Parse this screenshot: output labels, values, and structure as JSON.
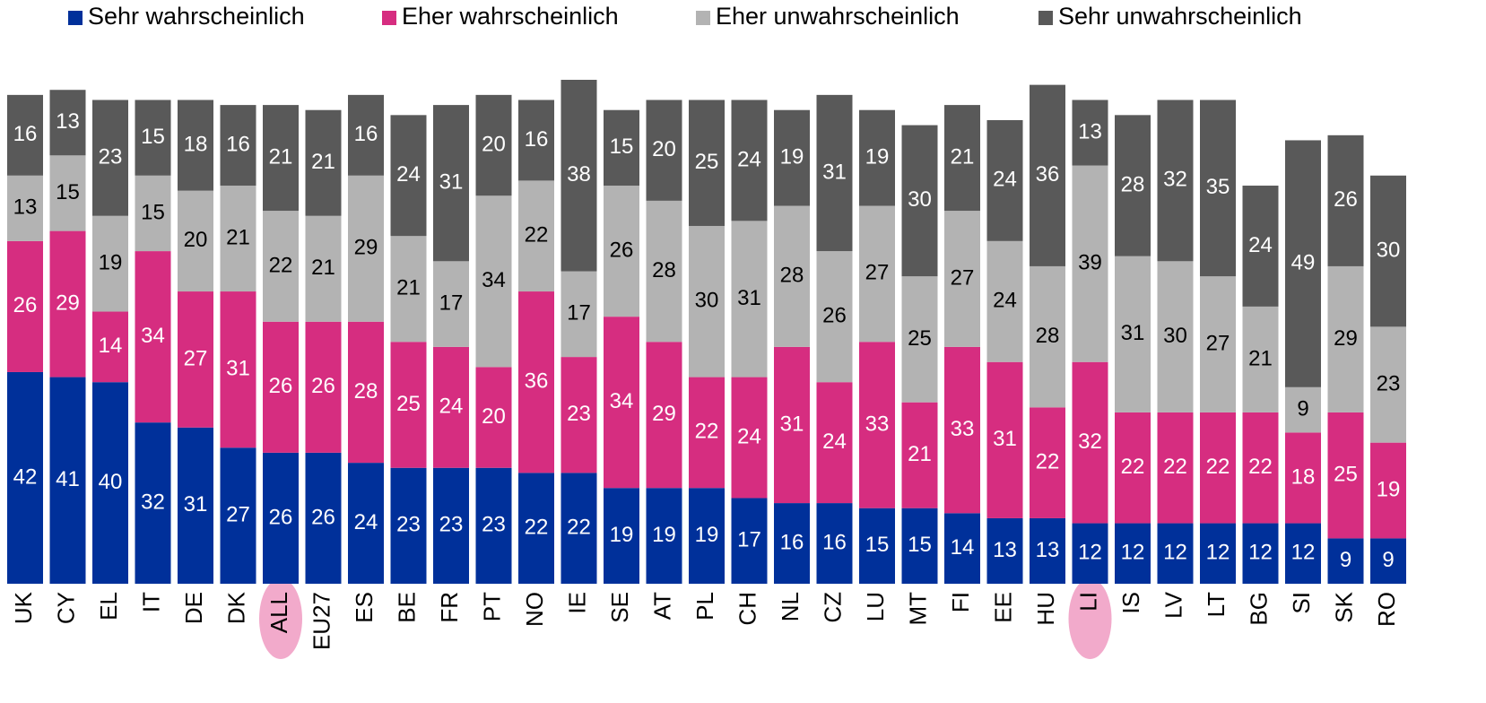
{
  "chart_data": {
    "type": "stacked_bar",
    "categories": [
      "UK",
      "CY",
      "EL",
      "IT",
      "DE",
      "DK",
      "ALL",
      "EU27",
      "ES",
      "BE",
      "FR",
      "PT",
      "NO",
      "IE",
      "SE",
      "AT",
      "PL",
      "CH",
      "NL",
      "CZ",
      "LU",
      "MT",
      "FI",
      "EE",
      "HU",
      "LI",
      "IS",
      "LV",
      "LT",
      "BG",
      "SI",
      "SK",
      "RO"
    ],
    "series": [
      {
        "name": "Sehr wahrscheinlich",
        "color": "#00309a",
        "label_color": "#ffffff",
        "values": [
          42,
          41,
          40,
          32,
          31,
          27,
          26,
          26,
          24,
          23,
          23,
          23,
          22,
          22,
          19,
          19,
          19,
          17,
          16,
          16,
          15,
          15,
          14,
          13,
          13,
          12,
          12,
          12,
          12,
          12,
          12,
          9,
          9
        ]
      },
      {
        "name": "Eher wahrscheinlich",
        "color": "#d62d80",
        "label_color": "#ffffff",
        "values": [
          26,
          29,
          14,
          34,
          27,
          31,
          26,
          26,
          28,
          25,
          24,
          20,
          36,
          23,
          34,
          29,
          22,
          24,
          31,
          24,
          33,
          21,
          33,
          31,
          22,
          32,
          22,
          22,
          22,
          22,
          18,
          25,
          19
        ]
      },
      {
        "name": "Eher unwahrscheinlich",
        "color": "#b3b3b3",
        "label_color": "#000000",
        "values": [
          13,
          15,
          19,
          15,
          20,
          21,
          22,
          21,
          29,
          21,
          17,
          34,
          22,
          17,
          26,
          28,
          30,
          31,
          28,
          26,
          27,
          25,
          27,
          24,
          28,
          39,
          31,
          30,
          27,
          21,
          9,
          29,
          23
        ]
      },
      {
        "name": "Sehr unwahrscheinlich",
        "color": "#595959",
        "label_color": "#ffffff",
        "values": [
          16,
          13,
          23,
          15,
          18,
          16,
          21,
          21,
          16,
          24,
          31,
          20,
          16,
          38,
          15,
          20,
          25,
          24,
          19,
          31,
          19,
          30,
          21,
          24,
          36,
          13,
          28,
          32,
          35,
          24,
          49,
          26,
          30
        ]
      }
    ]
  }
}
